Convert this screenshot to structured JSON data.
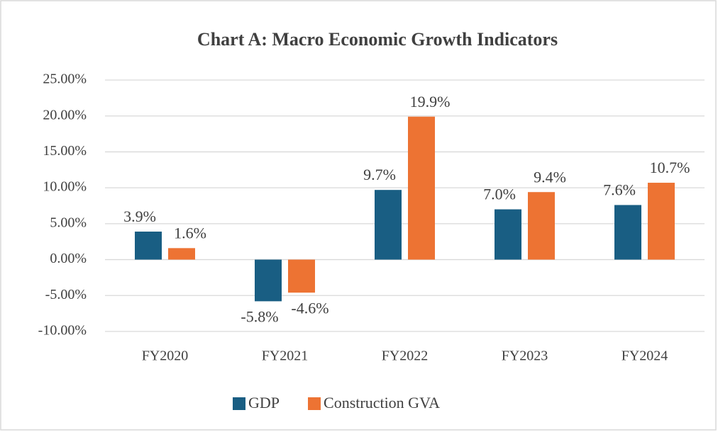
{
  "chart_data": {
    "type": "bar",
    "title": "Chart A: Macro Economic Growth Indicators",
    "categories": [
      "FY2020",
      "FY2021",
      "FY2022",
      "FY2023",
      "FY2024"
    ],
    "series": [
      {
        "name": "GDP",
        "color": "#195e83",
        "values": [
          3.9,
          -5.8,
          9.7,
          7.0,
          7.6
        ],
        "value_labels": [
          "3.9%",
          "-5.8%",
          "9.7%",
          "7.0%",
          "7.6%"
        ]
      },
      {
        "name": "Construction GVA",
        "color": "#ed7333",
        "values": [
          1.6,
          -4.6,
          19.9,
          9.4,
          10.7
        ],
        "value_labels": [
          "1.6%",
          "-4.6%",
          "19.9%",
          "9.4%",
          "10.7%"
        ]
      }
    ],
    "ylim": [
      -10,
      25
    ],
    "yticks": [
      {
        "value": -10,
        "label": "-10.00%"
      },
      {
        "value": -5,
        "label": "-5.00%"
      },
      {
        "value": 0,
        "label": "0.00%"
      },
      {
        "value": 5,
        "label": "5.00%"
      },
      {
        "value": 10,
        "label": "10.00%"
      },
      {
        "value": 15,
        "label": "15.00%"
      },
      {
        "value": 20,
        "label": "20.00%"
      },
      {
        "value": 25,
        "label": "25.00%"
      }
    ],
    "grid": true,
    "legend": "bottom"
  }
}
